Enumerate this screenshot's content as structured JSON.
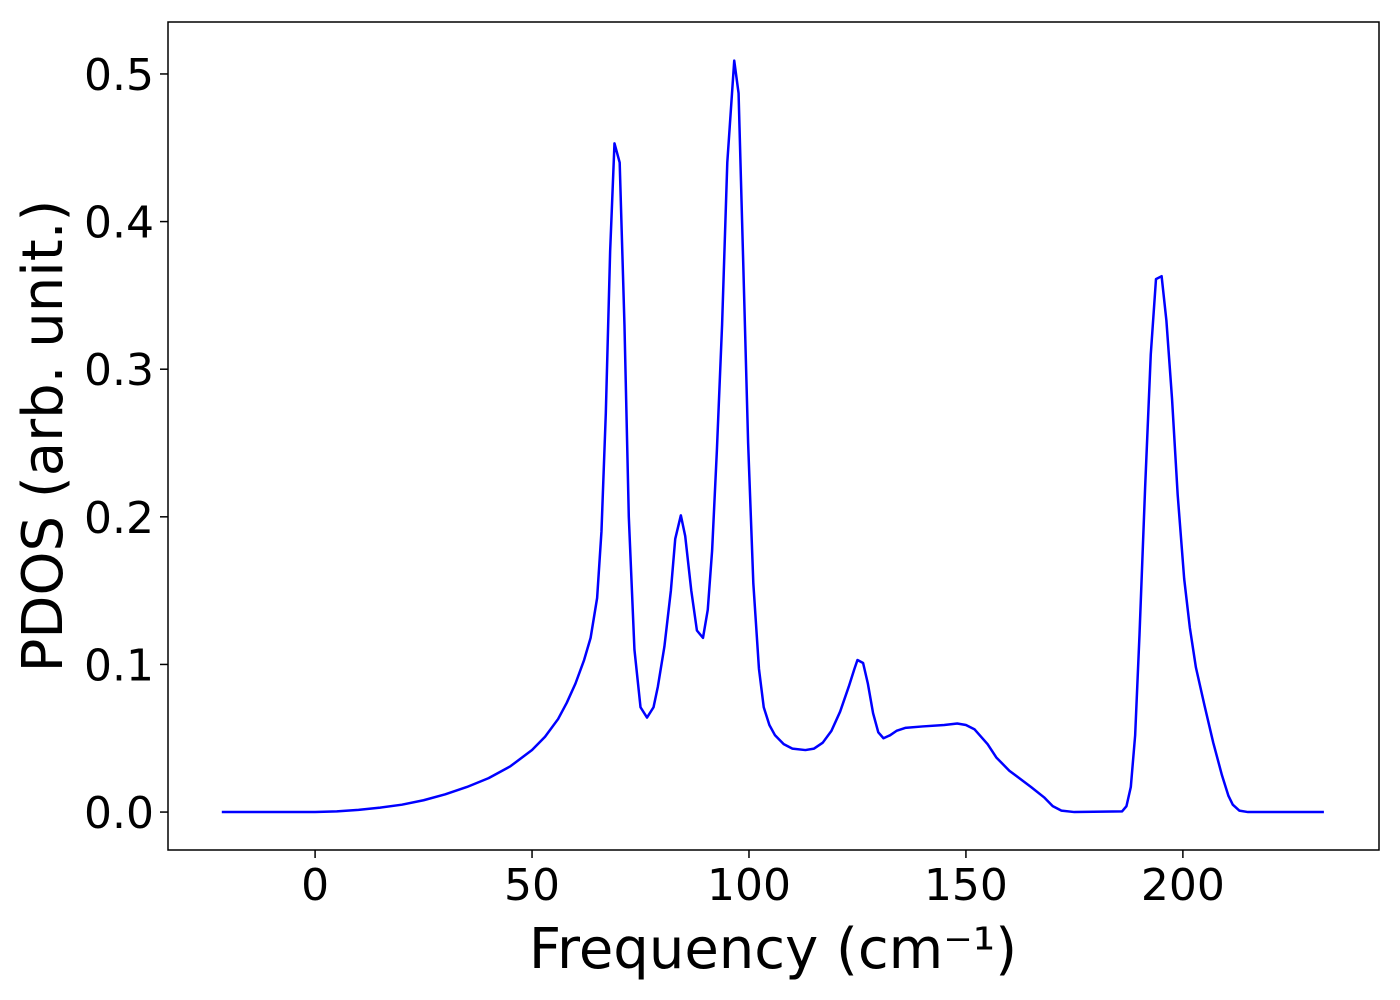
{
  "chart_data": {
    "type": "line",
    "xlabel": "Frequency (cm⁻¹)",
    "ylabel": "PDOS (arb. unit.)",
    "xlim": [
      -33.9,
      245.2
    ],
    "ylim": [
      -0.0257,
      0.5352
    ],
    "xticks": [
      0,
      50,
      100,
      150,
      200
    ],
    "yticks": [
      {
        "value": 0,
        "label": "0.0"
      },
      0.1,
      0.2,
      0.3,
      0.4,
      0.5
    ],
    "grid": false,
    "series": [
      {
        "color": "#0000ff",
        "x": [
          -21.5,
          -10,
          0,
          5,
          10,
          15,
          20,
          25,
          30,
          35,
          40,
          45,
          50,
          53,
          56,
          58,
          60,
          62,
          63.5,
          65,
          66,
          67,
          68,
          69,
          70.2,
          71.3,
          72.3,
          73.6,
          75,
          76.5,
          78,
          79,
          80.5,
          82,
          83,
          84.3,
          85.3,
          86.7,
          88,
          89.4,
          90.5,
          91.5,
          92.6,
          93.8,
          95,
          96.6,
          97.6,
          98.6,
          99.8,
          101,
          102.3,
          103.4,
          104.7,
          106,
          108,
          110,
          113,
          115,
          117,
          119,
          121,
          123,
          124.3,
          125,
          126.3,
          127.4,
          128.6,
          129.8,
          131,
          132.5,
          134,
          136,
          140,
          145,
          148,
          150,
          152,
          155,
          157,
          160,
          165,
          168,
          170,
          172,
          175,
          186,
          187,
          188,
          189,
          190,
          191.3,
          192.6,
          193.8,
          195.1,
          196.2,
          197.5,
          198.8,
          200.3,
          201.6,
          203,
          205,
          207,
          209,
          210.5,
          211.5,
          213,
          215,
          232.5
        ],
        "values": [
          0,
          0,
          0,
          0.0005,
          0.0015,
          0.003,
          0.005,
          0.008,
          0.012,
          0.017,
          0.023,
          0.031,
          0.042,
          0.051,
          0.063,
          0.074,
          0.087,
          0.103,
          0.118,
          0.145,
          0.19,
          0.27,
          0.38,
          0.453,
          0.44,
          0.33,
          0.2,
          0.11,
          0.071,
          0.064,
          0.071,
          0.085,
          0.112,
          0.15,
          0.185,
          0.201,
          0.187,
          0.15,
          0.123,
          0.118,
          0.137,
          0.177,
          0.245,
          0.33,
          0.44,
          0.509,
          0.487,
          0.38,
          0.25,
          0.155,
          0.097,
          0.071,
          0.059,
          0.052,
          0.046,
          0.043,
          0.042,
          0.043,
          0.047,
          0.055,
          0.068,
          0.085,
          0.097,
          0.103,
          0.101,
          0.087,
          0.067,
          0.054,
          0.05,
          0.052,
          0.055,
          0.057,
          0.058,
          0.059,
          0.06,
          0.059,
          0.056,
          0.046,
          0.037,
          0.028,
          0.017,
          0.01,
          0.004,
          0.001,
          0,
          0.0005,
          0.004,
          0.017,
          0.052,
          0.12,
          0.22,
          0.31,
          0.361,
          0.363,
          0.333,
          0.28,
          0.215,
          0.158,
          0.125,
          0.098,
          0.072,
          0.047,
          0.025,
          0.011,
          0.005,
          0.001,
          0,
          0
        ]
      }
    ]
  }
}
